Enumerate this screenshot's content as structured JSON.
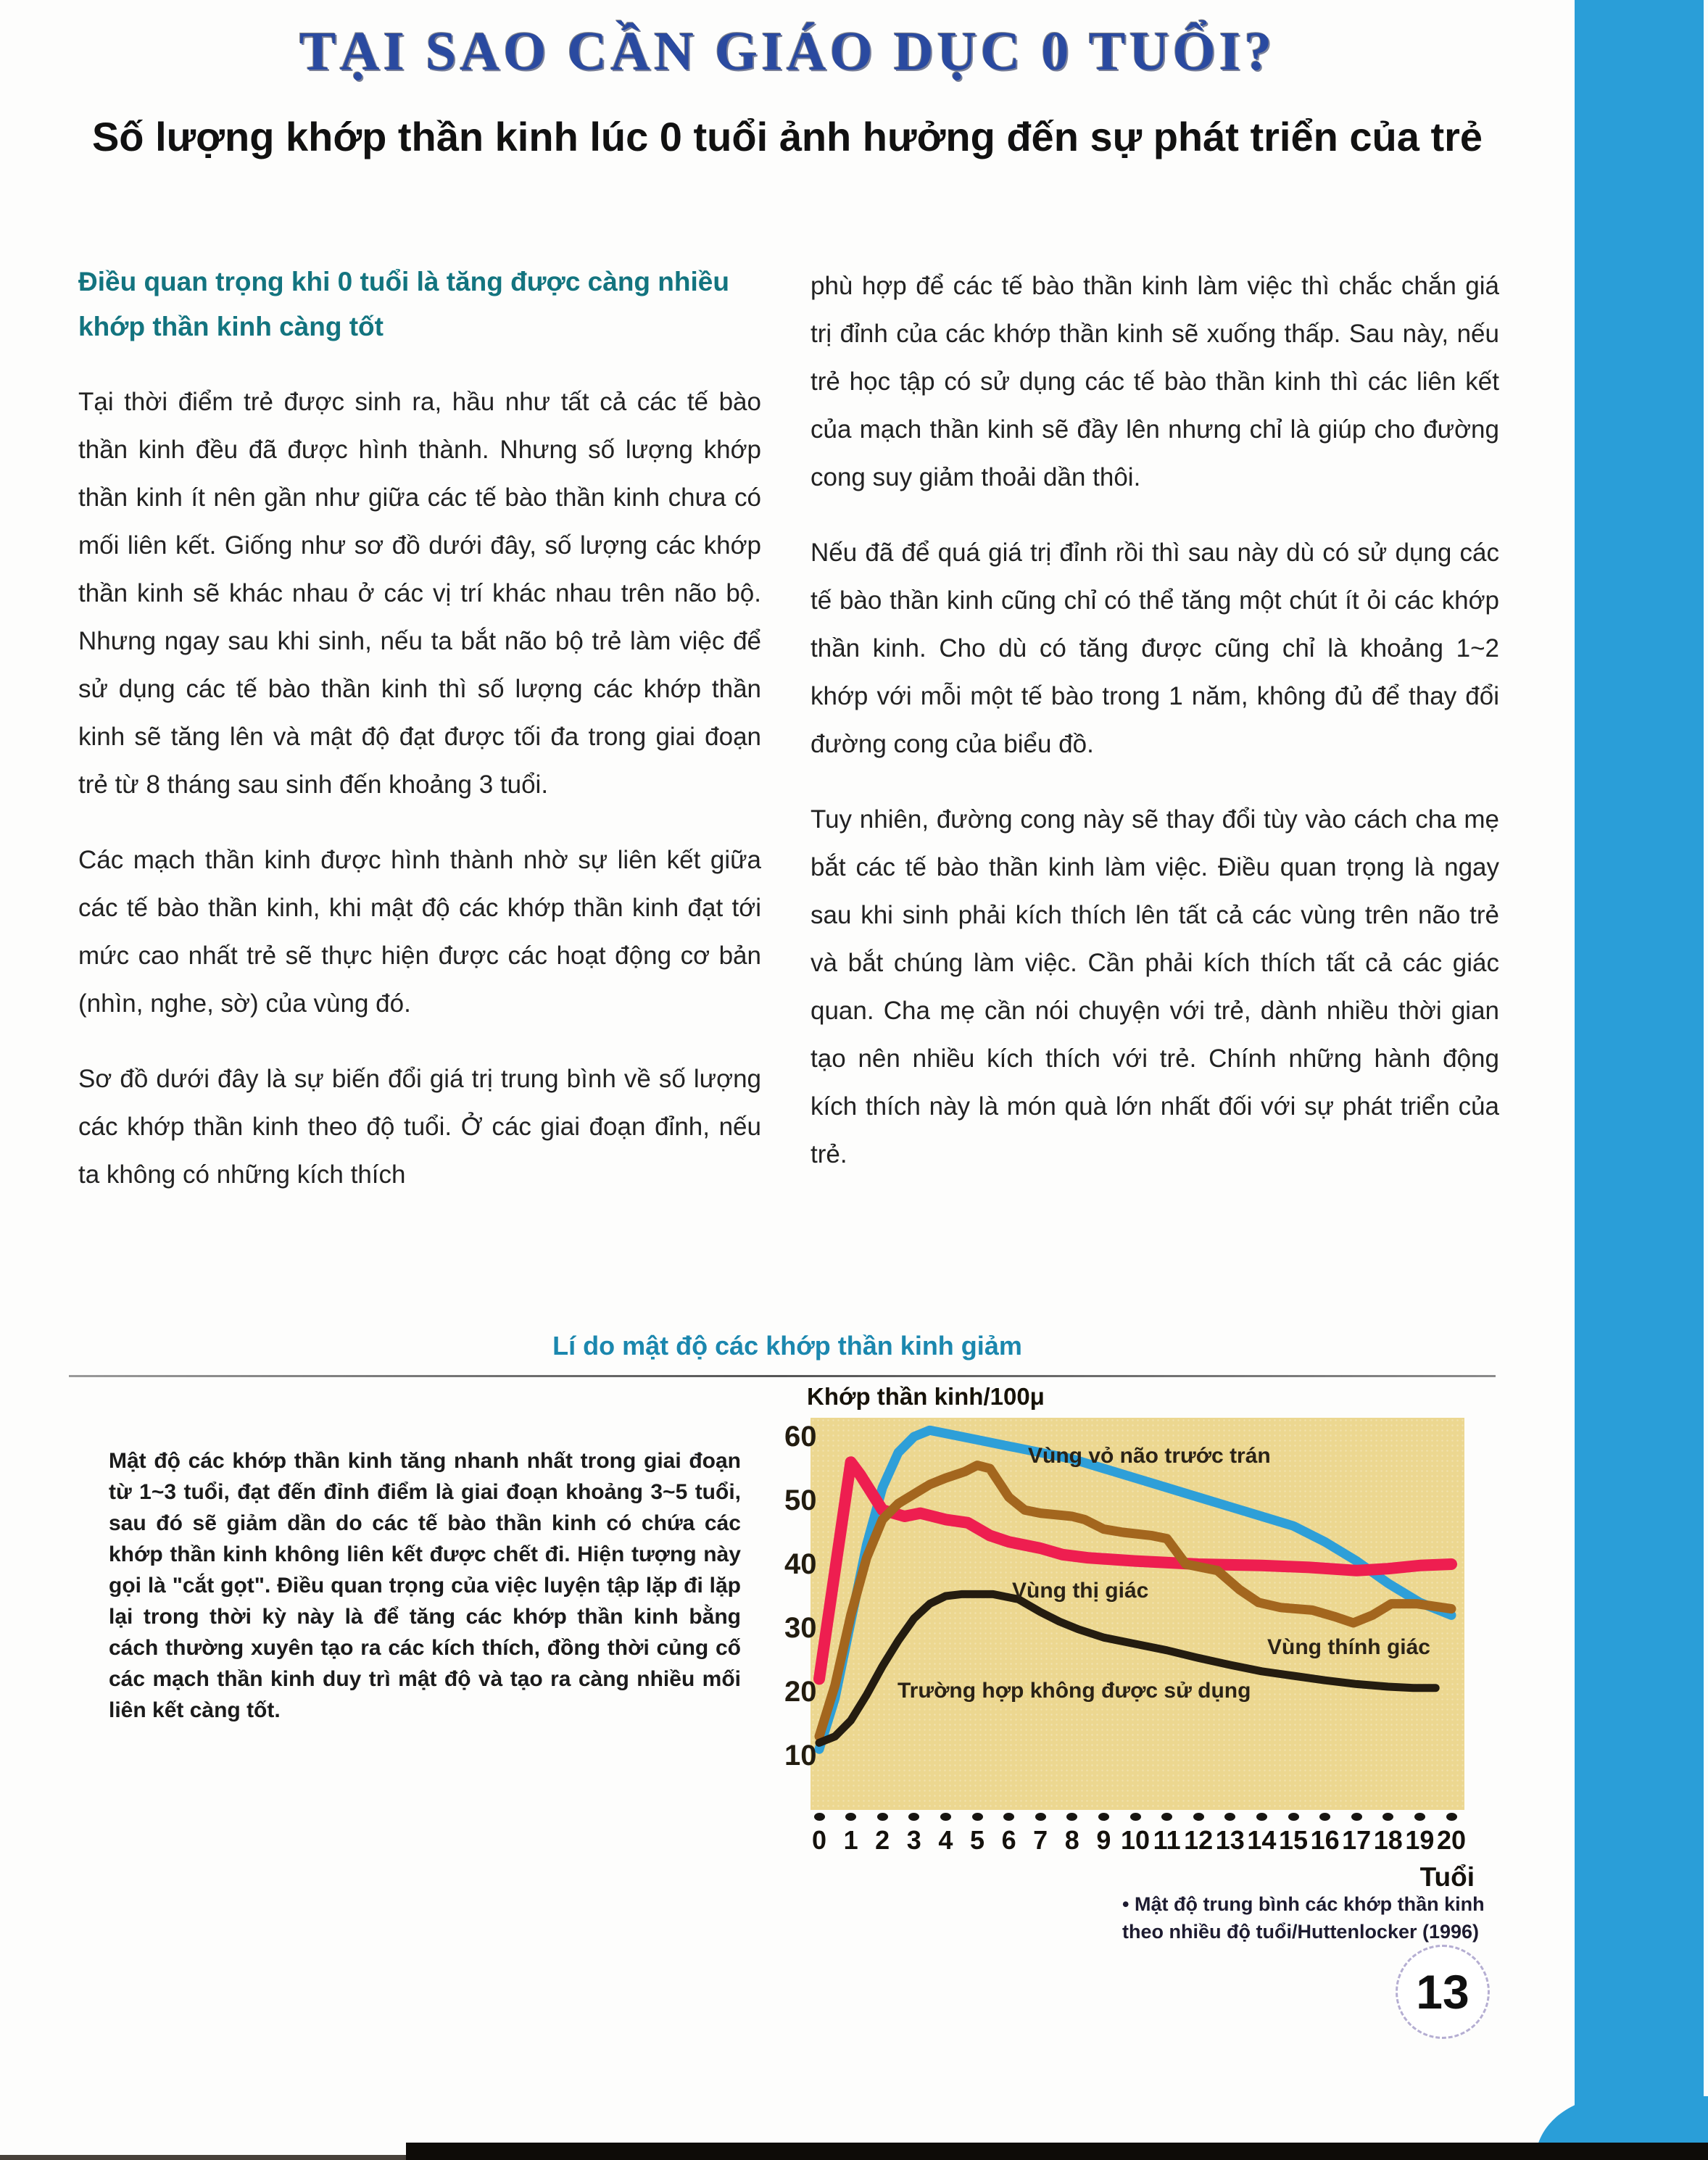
{
  "page": {
    "title": "TẠI SAO CẦN GIÁO DỤC 0 TUỔI?",
    "subtitle": "Số lượng khớp thần kinh lúc 0 tuổi ảnh hưởng đến sự phát triển của trẻ",
    "page_number": "13"
  },
  "columns": {
    "left": {
      "heading": "Điều quan trọng khi 0 tuổi là tăng được càng nhiều khớp thần kinh càng tốt",
      "paragraphs": [
        "Tại thời điểm trẻ được sinh ra, hầu như tất cả các tế bào thần kinh đều đã được hình thành. Nhưng số lượng khớp thần kinh ít nên gần như giữa các tế bào thần kinh chưa có mối liên kết. Giống như sơ đồ dưới đây, số lượng các khớp thần kinh sẽ khác nhau ở các vị trí khác nhau trên não bộ. Nhưng ngay sau khi sinh, nếu ta bắt não bộ trẻ làm việc để sử dụng các tế bào thần kinh thì số lượng các khớp thần kinh sẽ tăng lên và mật độ đạt được tối đa trong giai đoạn trẻ từ 8 tháng sau sinh đến khoảng 3 tuổi.",
        "Các mạch thần kinh được hình thành nhờ sự liên kết giữa các tế bào thần kinh, khi mật độ các khớp thần kinh đạt tới mức cao nhất trẻ sẽ thực hiện được các hoạt động cơ bản (nhìn, nghe, sờ) của vùng đó.",
        "Sơ đồ dưới đây là sự biến đổi giá trị trung bình về số lượng các khớp thần kinh theo độ tuổi. Ở các giai đoạn đỉnh, nếu ta không có những kích thích"
      ]
    },
    "right": {
      "paragraphs": [
        "phù hợp để các tế bào thần kinh làm việc thì chắc chắn giá trị đỉnh của các khớp thần kinh sẽ xuống thấp. Sau này, nếu trẻ học tập có sử dụng các tế bào thần kinh thì các liên kết của mạch thần kinh sẽ đầy lên nhưng chỉ là giúp cho đường cong suy giảm thoải dần thôi.",
        "Nếu đã để quá giá trị đỉnh rồi thì sau này dù có sử dụng các tế bào thần kinh cũng chỉ có thể tăng một chút ít ỏi các khớp thần kinh. Cho dù có tăng được cũng chỉ là khoảng 1~2 khớp với mỗi một tế bào trong 1 năm, không đủ để thay đổi đường cong của biểu đồ.",
        "Tuy nhiên, đường cong này sẽ thay đổi tùy vào cách cha mẹ bắt các tế bào thần kinh làm việc. Điều quan trọng là ngay sau khi sinh phải kích thích lên tất cả các vùng trên não trẻ và bắt chúng làm việc. Cần phải kích thích tất cả các giác quan. Cha mẹ cần nói chuyện với trẻ, dành nhiều thời gian tạo nên nhiều kích thích với trẻ. Chính những hành động kích thích này là món quà lớn nhất đối với sự phát triển của trẻ."
      ]
    }
  },
  "section": {
    "heading": "Lí do mật độ các khớp thần kinh giảm",
    "note": "Mật độ các khớp thần kinh tăng nhanh nhất trong giai đoạn từ 1~3 tuổi, đạt đến đỉnh điểm là giai đoạn khoảng 3~5 tuổi, sau đó sẽ giảm dần do các tế bào thần kinh có chứa các khớp thần kinh không liên kết được chết đi. Hiện tượng này gọi là \"cắt gọt\". Điều quan trọng của việc luyện tập lặp đi lặp lại trong thời kỳ này là để tăng các khớp thần kinh bằng cách thường xuyên tạo ra các kích thích, đồng thời củng cố các mạch thần kinh duy trì mật độ và tạo ra càng nhiều mối liên kết càng tốt."
  },
  "chart_data": {
    "type": "line",
    "title": "Lí do mật độ các khớp thần kinh giảm",
    "ylabel": "Khớp thần kinh/100μ",
    "xlabel": "Tuổi",
    "ylim": [
      0,
      65
    ],
    "y_ticks": [
      60,
      50,
      40,
      30,
      20,
      10
    ],
    "x_ticks": [
      0,
      1,
      2,
      3,
      4,
      5,
      6,
      7,
      8,
      9,
      10,
      11,
      12,
      13,
      14,
      15,
      16,
      17,
      18,
      19,
      20
    ],
    "grid": false,
    "legend_position": "inline-labels",
    "background": "#ecd790",
    "series": [
      {
        "name": "Vùng vỏ não trước trán",
        "color": "#2e9fd8",
        "stroke_width": 13,
        "points": [
          [
            0,
            11
          ],
          [
            0.5,
            19
          ],
          [
            1,
            31
          ],
          [
            1.5,
            43
          ],
          [
            2,
            52
          ],
          [
            2.5,
            57.5
          ],
          [
            3,
            60
          ],
          [
            3.5,
            61
          ],
          [
            4,
            60.5
          ],
          [
            5,
            59.5
          ],
          [
            6,
            58.5
          ],
          [
            7,
            57.5
          ],
          [
            8,
            56.5
          ],
          [
            9,
            55
          ],
          [
            10,
            53.5
          ],
          [
            11,
            52
          ],
          [
            12,
            50.5
          ],
          [
            13,
            49
          ],
          [
            14,
            47.5
          ],
          [
            15,
            46
          ],
          [
            16,
            43.5
          ],
          [
            17,
            40.5
          ],
          [
            18,
            37
          ],
          [
            19,
            34
          ],
          [
            20,
            32
          ]
        ]
      },
      {
        "name": "Vùng thị giác",
        "color": "#ee1e50",
        "stroke_width": 16,
        "points": [
          [
            0,
            22
          ],
          [
            0.5,
            39
          ],
          [
            1,
            56
          ],
          [
            1.3,
            54
          ],
          [
            2,
            48.5
          ],
          [
            2.7,
            47.5
          ],
          [
            3.2,
            48
          ],
          [
            4,
            47
          ],
          [
            4.7,
            46.5
          ],
          [
            5.4,
            44.5
          ],
          [
            6,
            43.5
          ],
          [
            7,
            42.5
          ],
          [
            7.7,
            41.5
          ],
          [
            8.5,
            41
          ],
          [
            10,
            40.5
          ],
          [
            12,
            40
          ],
          [
            14,
            39.8
          ],
          [
            15.5,
            39.5
          ],
          [
            17,
            39
          ],
          [
            18,
            39.3
          ],
          [
            19,
            39.8
          ],
          [
            20,
            40
          ]
        ]
      },
      {
        "name": "Vùng thính giác",
        "color": "#a3661e",
        "stroke_width": 13,
        "points": [
          [
            0,
            13
          ],
          [
            0.5,
            21
          ],
          [
            1,
            32
          ],
          [
            1.5,
            41
          ],
          [
            2,
            47
          ],
          [
            2.5,
            49.5
          ],
          [
            3,
            51
          ],
          [
            3.5,
            52.5
          ],
          [
            4,
            53.5
          ],
          [
            4.6,
            54.5
          ],
          [
            5,
            55.5
          ],
          [
            5.4,
            55
          ],
          [
            6,
            50.5
          ],
          [
            6.5,
            48.5
          ],
          [
            7,
            48
          ],
          [
            8,
            47.5
          ],
          [
            8.4,
            47
          ],
          [
            9,
            45.5
          ],
          [
            9.6,
            45
          ],
          [
            10.5,
            44.5
          ],
          [
            11,
            44
          ],
          [
            11.6,
            40
          ],
          [
            12.6,
            39
          ],
          [
            13.3,
            36
          ],
          [
            13.9,
            34
          ],
          [
            14.6,
            33.2
          ],
          [
            15.6,
            32.8
          ],
          [
            16.3,
            31.8
          ],
          [
            16.9,
            30.8
          ],
          [
            17.5,
            32
          ],
          [
            18.1,
            33.8
          ],
          [
            18.9,
            33.8
          ],
          [
            20,
            33
          ]
        ]
      },
      {
        "name": "Trường hợp không được sử dụng",
        "color": "#241c10",
        "stroke_width": 11,
        "points": [
          [
            0,
            12
          ],
          [
            0.5,
            13
          ],
          [
            1,
            15.5
          ],
          [
            1.5,
            19.5
          ],
          [
            2,
            24
          ],
          [
            2.5,
            28
          ],
          [
            3,
            31.5
          ],
          [
            3.5,
            33.8
          ],
          [
            4,
            35
          ],
          [
            4.5,
            35.3
          ],
          [
            5.5,
            35.3
          ],
          [
            6.3,
            34.5
          ],
          [
            7,
            32.5
          ],
          [
            7.6,
            31
          ],
          [
            8.2,
            29.8
          ],
          [
            9,
            28.5
          ],
          [
            10,
            27.5
          ],
          [
            11,
            26.5
          ],
          [
            12,
            25.3
          ],
          [
            13,
            24.2
          ],
          [
            14,
            23.2
          ],
          [
            15,
            22.5
          ],
          [
            16,
            21.8
          ],
          [
            17,
            21.2
          ],
          [
            18,
            20.8
          ],
          [
            18.8,
            20.6
          ],
          [
            19.5,
            20.6
          ]
        ]
      }
    ],
    "caption_lines": [
      "• Mật độ trung bình các khớp thần kinh",
      "theo nhiều độ tuổi/Huttenlocker (1996)"
    ],
    "source": "Huttenlocker (1996)"
  },
  "colors": {
    "band_blue": "#2a9ed8",
    "title_blue": "#2a4aa0",
    "heading_teal": "#13747f",
    "section_blue": "#1b87ae",
    "chart_background": "#ecd790"
  }
}
